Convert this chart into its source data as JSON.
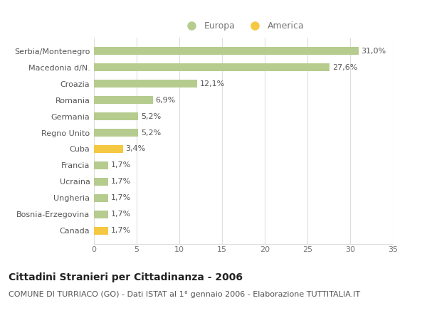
{
  "categories": [
    "Serbia/Montenegro",
    "Macedonia d/N.",
    "Croazia",
    "Romania",
    "Germania",
    "Regno Unito",
    "Cuba",
    "Francia",
    "Ucraina",
    "Ungheria",
    "Bosnia-Erzegovina",
    "Canada"
  ],
  "values": [
    31.0,
    27.6,
    12.1,
    6.9,
    5.2,
    5.2,
    3.4,
    1.7,
    1.7,
    1.7,
    1.7,
    1.7
  ],
  "labels": [
    "31,0%",
    "27,6%",
    "12,1%",
    "6,9%",
    "5,2%",
    "5,2%",
    "3,4%",
    "1,7%",
    "1,7%",
    "1,7%",
    "1,7%",
    "1,7%"
  ],
  "colors": [
    "#b5cc8e",
    "#b5cc8e",
    "#b5cc8e",
    "#b5cc8e",
    "#b5cc8e",
    "#b5cc8e",
    "#f5c842",
    "#b5cc8e",
    "#b5cc8e",
    "#b5cc8e",
    "#b5cc8e",
    "#f5c842"
  ],
  "europa_color": "#b5cc8e",
  "america_color": "#f5c842",
  "background_color": "#ffffff",
  "grid_color": "#dddddd",
  "title": "Cittadini Stranieri per Cittadinanza - 2006",
  "subtitle": "COMUNE DI TURRIACO (GO) - Dati ISTAT al 1° gennaio 2006 - Elaborazione TUTTITALIA.IT",
  "xlim": [
    0,
    35
  ],
  "xticks": [
    0,
    5,
    10,
    15,
    20,
    25,
    30,
    35
  ],
  "legend_europa": "Europa",
  "legend_america": "America",
  "title_fontsize": 10,
  "subtitle_fontsize": 8,
  "label_fontsize": 8,
  "tick_fontsize": 8,
  "bar_height": 0.5
}
